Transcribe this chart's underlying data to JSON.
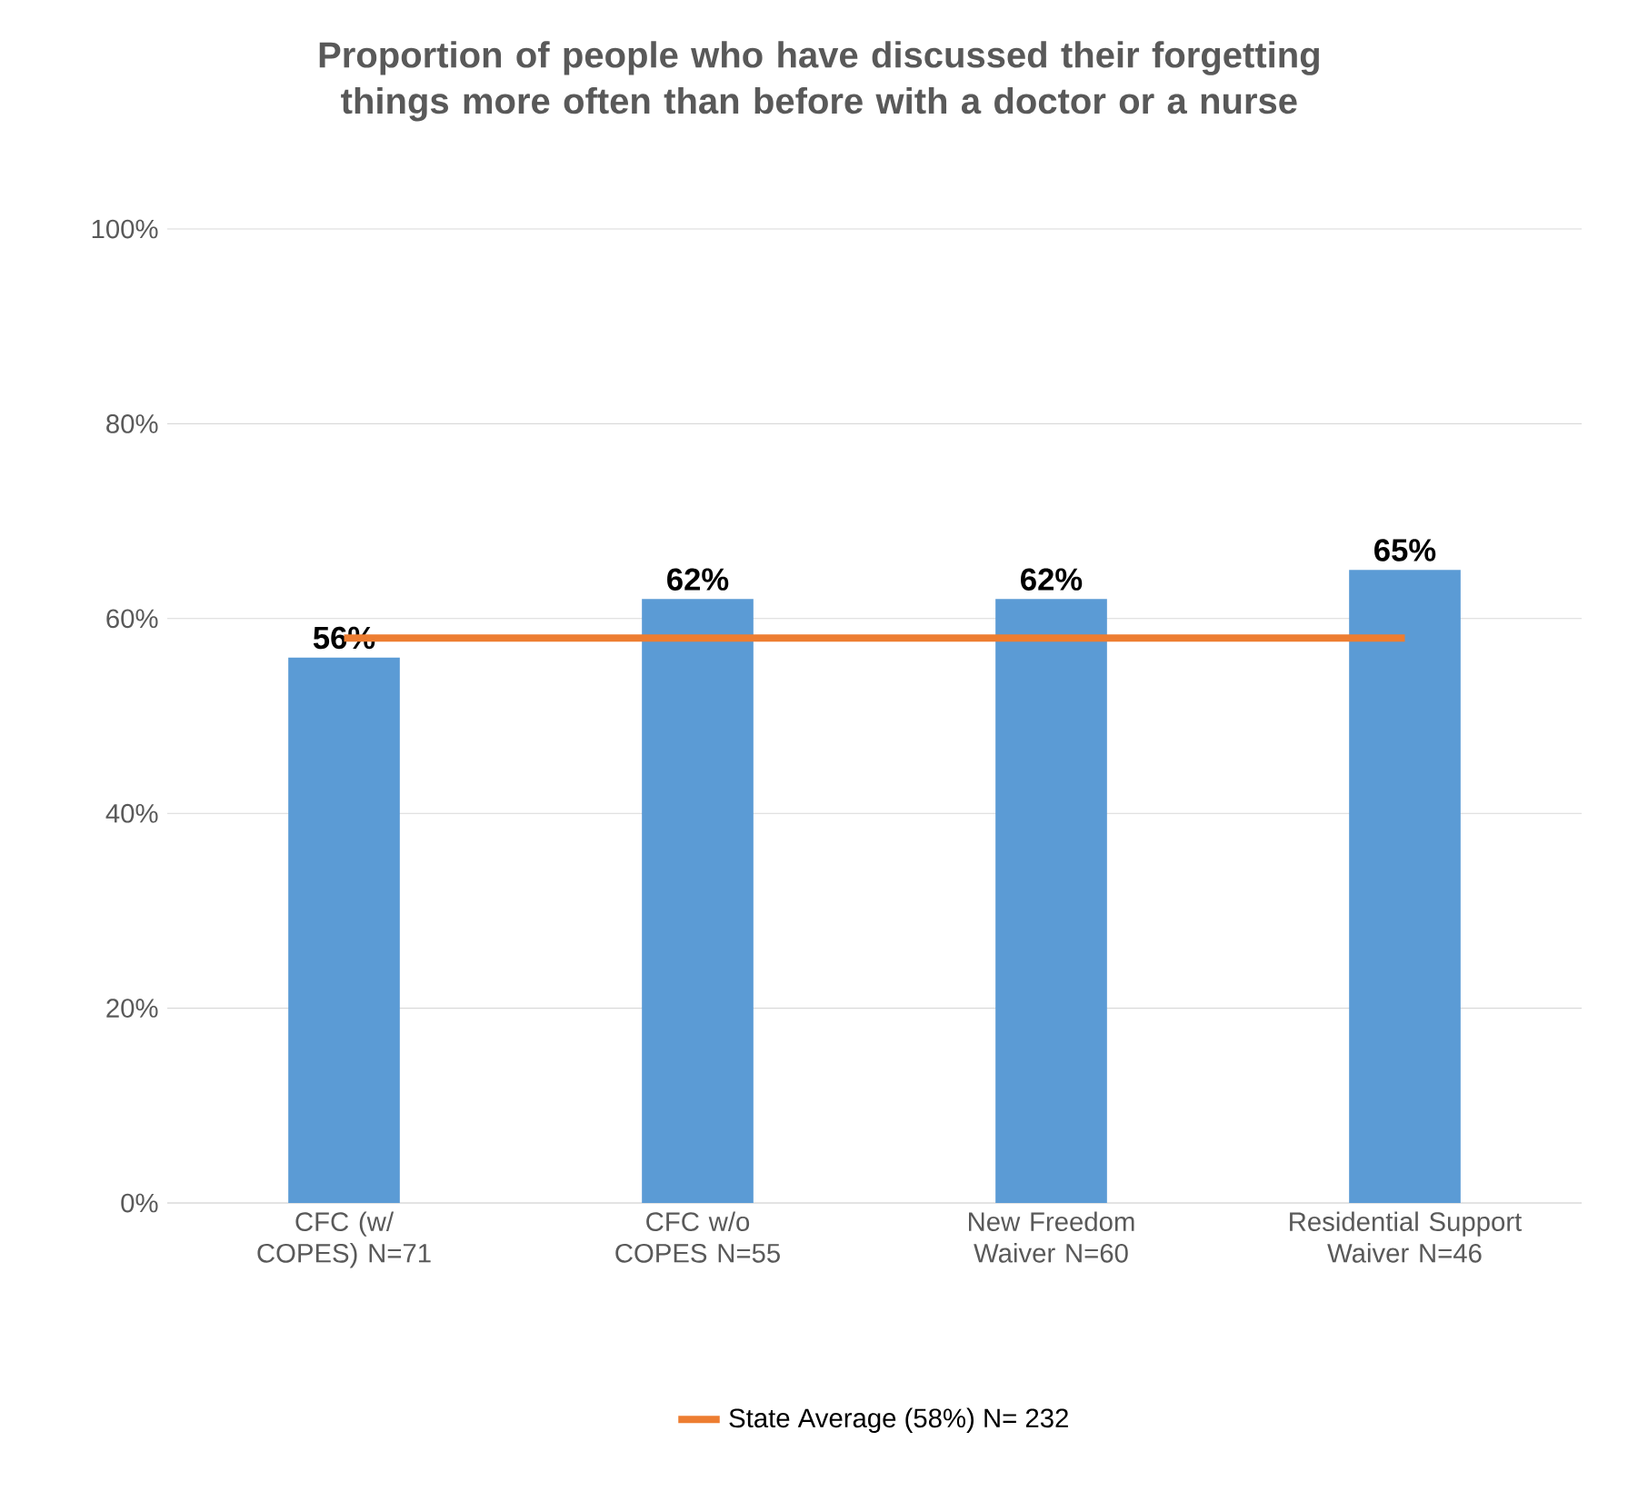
{
  "chart_data": {
    "type": "bar",
    "title": "Proportion of people who have discussed their forgetting things more often than before with a doctor or a nurse",
    "categories": [
      "CFC (w/ COPES) N=71",
      "CFC w/o COPES N=55",
      "New Freedom Waiver N=60",
      "Residential Support Waiver N=46"
    ],
    "series": [
      {
        "color": "#5b9bd5",
        "values": [
          56,
          62,
          62,
          65
        ],
        "value_labels": [
          "56%",
          "62%",
          "62%",
          "65%"
        ]
      },
      {
        "type": "line",
        "name": "State Average (58%) N= 232",
        "color": "#ed7d31",
        "values": [
          58,
          58,
          58,
          58
        ]
      }
    ],
    "ylim": [
      0,
      100
    ],
    "yticks": [
      {
        "value": 0,
        "label": "0%"
      },
      {
        "value": 20,
        "label": "20%"
      },
      {
        "value": 40,
        "label": "40%"
      },
      {
        "value": 60,
        "label": "60%"
      },
      {
        "value": 80,
        "label": "80%"
      },
      {
        "value": 100,
        "label": "100%"
      }
    ],
    "grid": "y",
    "legend": "bottom"
  }
}
